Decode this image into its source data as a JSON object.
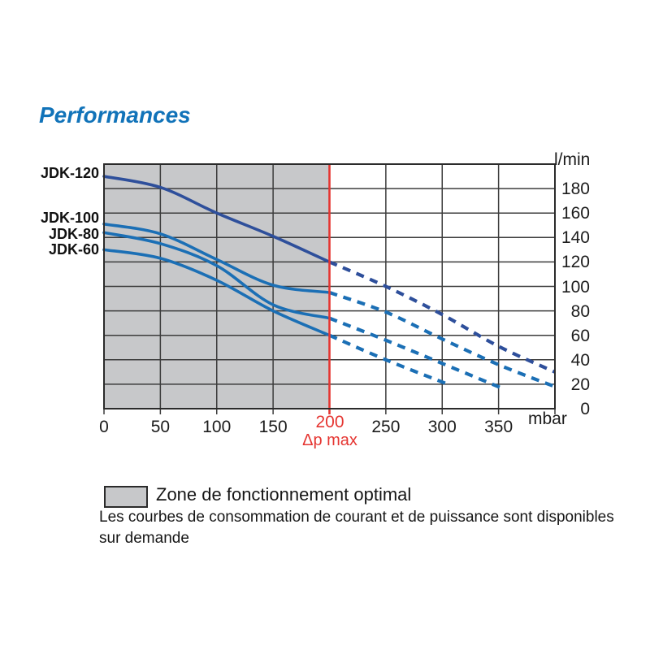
{
  "page": {
    "title": "Performances"
  },
  "colors": {
    "title_blue": "#1173b9",
    "curve_blue": "#1b6fb5",
    "curve_dark_blue": "#2e4f9b",
    "dp_max_red": "#e53531",
    "zone_gray": "#c7c8ca",
    "grid_line": "#3c3c3c",
    "chart_border": "#2b2b2b"
  },
  "chart_data": {
    "type": "line",
    "title": "Performances",
    "x_unit": "mbar",
    "y_unit": "l/min",
    "xlim": [
      0,
      400
    ],
    "ylim": [
      0,
      200
    ],
    "x_gridline_step": 50,
    "y_gridline_step": 20,
    "grid": true,
    "x_ticks": [
      {
        "value": 0,
        "label": "0"
      },
      {
        "value": 50,
        "label": "50"
      },
      {
        "value": 100,
        "label": "100"
      },
      {
        "value": 150,
        "label": "150"
      },
      {
        "value": 250,
        "label": "250"
      },
      {
        "value": 300,
        "label": "300"
      },
      {
        "value": 350,
        "label": "350"
      }
    ],
    "y_ticks": [
      {
        "value": 0,
        "label": "0"
      },
      {
        "value": 20,
        "label": "20"
      },
      {
        "value": 40,
        "label": "40"
      },
      {
        "value": 60,
        "label": "60"
      },
      {
        "value": 80,
        "label": "80"
      },
      {
        "value": 100,
        "label": "100"
      },
      {
        "value": 120,
        "label": "120"
      },
      {
        "value": 140,
        "label": "140"
      },
      {
        "value": 160,
        "label": "160"
      },
      {
        "value": 180,
        "label": "180"
      }
    ],
    "dp_max": {
      "value": 200,
      "label": "200",
      "sublabel": "Δp max"
    },
    "optimal_zone": {
      "from": 0,
      "to": 200
    },
    "series": [
      {
        "name": "JDK-120",
        "color_key": "curve_dark_blue",
        "solid": [
          [
            0,
            190
          ],
          [
            50,
            181
          ],
          [
            100,
            160
          ],
          [
            150,
            141
          ],
          [
            200,
            120
          ]
        ],
        "dashed": [
          [
            200,
            120
          ],
          [
            250,
            100
          ],
          [
            300,
            77
          ],
          [
            350,
            51
          ],
          [
            400,
            30
          ]
        ]
      },
      {
        "name": "JDK-100",
        "color_key": "curve_blue",
        "solid": [
          [
            0,
            151
          ],
          [
            50,
            143
          ],
          [
            100,
            122
          ],
          [
            150,
            101
          ],
          [
            200,
            95
          ]
        ],
        "dashed": [
          [
            200,
            95
          ],
          [
            250,
            79
          ],
          [
            300,
            57
          ],
          [
            350,
            36
          ],
          [
            400,
            18
          ]
        ]
      },
      {
        "name": "JDK-80",
        "color_key": "curve_blue",
        "solid": [
          [
            0,
            144
          ],
          [
            50,
            135
          ],
          [
            100,
            117
          ],
          [
            150,
            85
          ],
          [
            200,
            74
          ]
        ],
        "dashed": [
          [
            200,
            74
          ],
          [
            250,
            56
          ],
          [
            300,
            37
          ],
          [
            355,
            16
          ]
        ]
      },
      {
        "name": "JDK-60",
        "color_key": "curve_blue",
        "solid": [
          [
            0,
            130
          ],
          [
            50,
            123
          ],
          [
            100,
            105
          ],
          [
            150,
            80
          ],
          [
            200,
            60
          ]
        ],
        "dashed": [
          [
            200,
            60
          ],
          [
            250,
            40
          ],
          [
            305,
            20
          ]
        ]
      }
    ]
  },
  "legend": {
    "zone_label": "Zone de fonctionnement optimal",
    "note_line1": "Les courbes de consommation de courant et de puissance sont disponibles",
    "note_line2": "sur demande"
  }
}
